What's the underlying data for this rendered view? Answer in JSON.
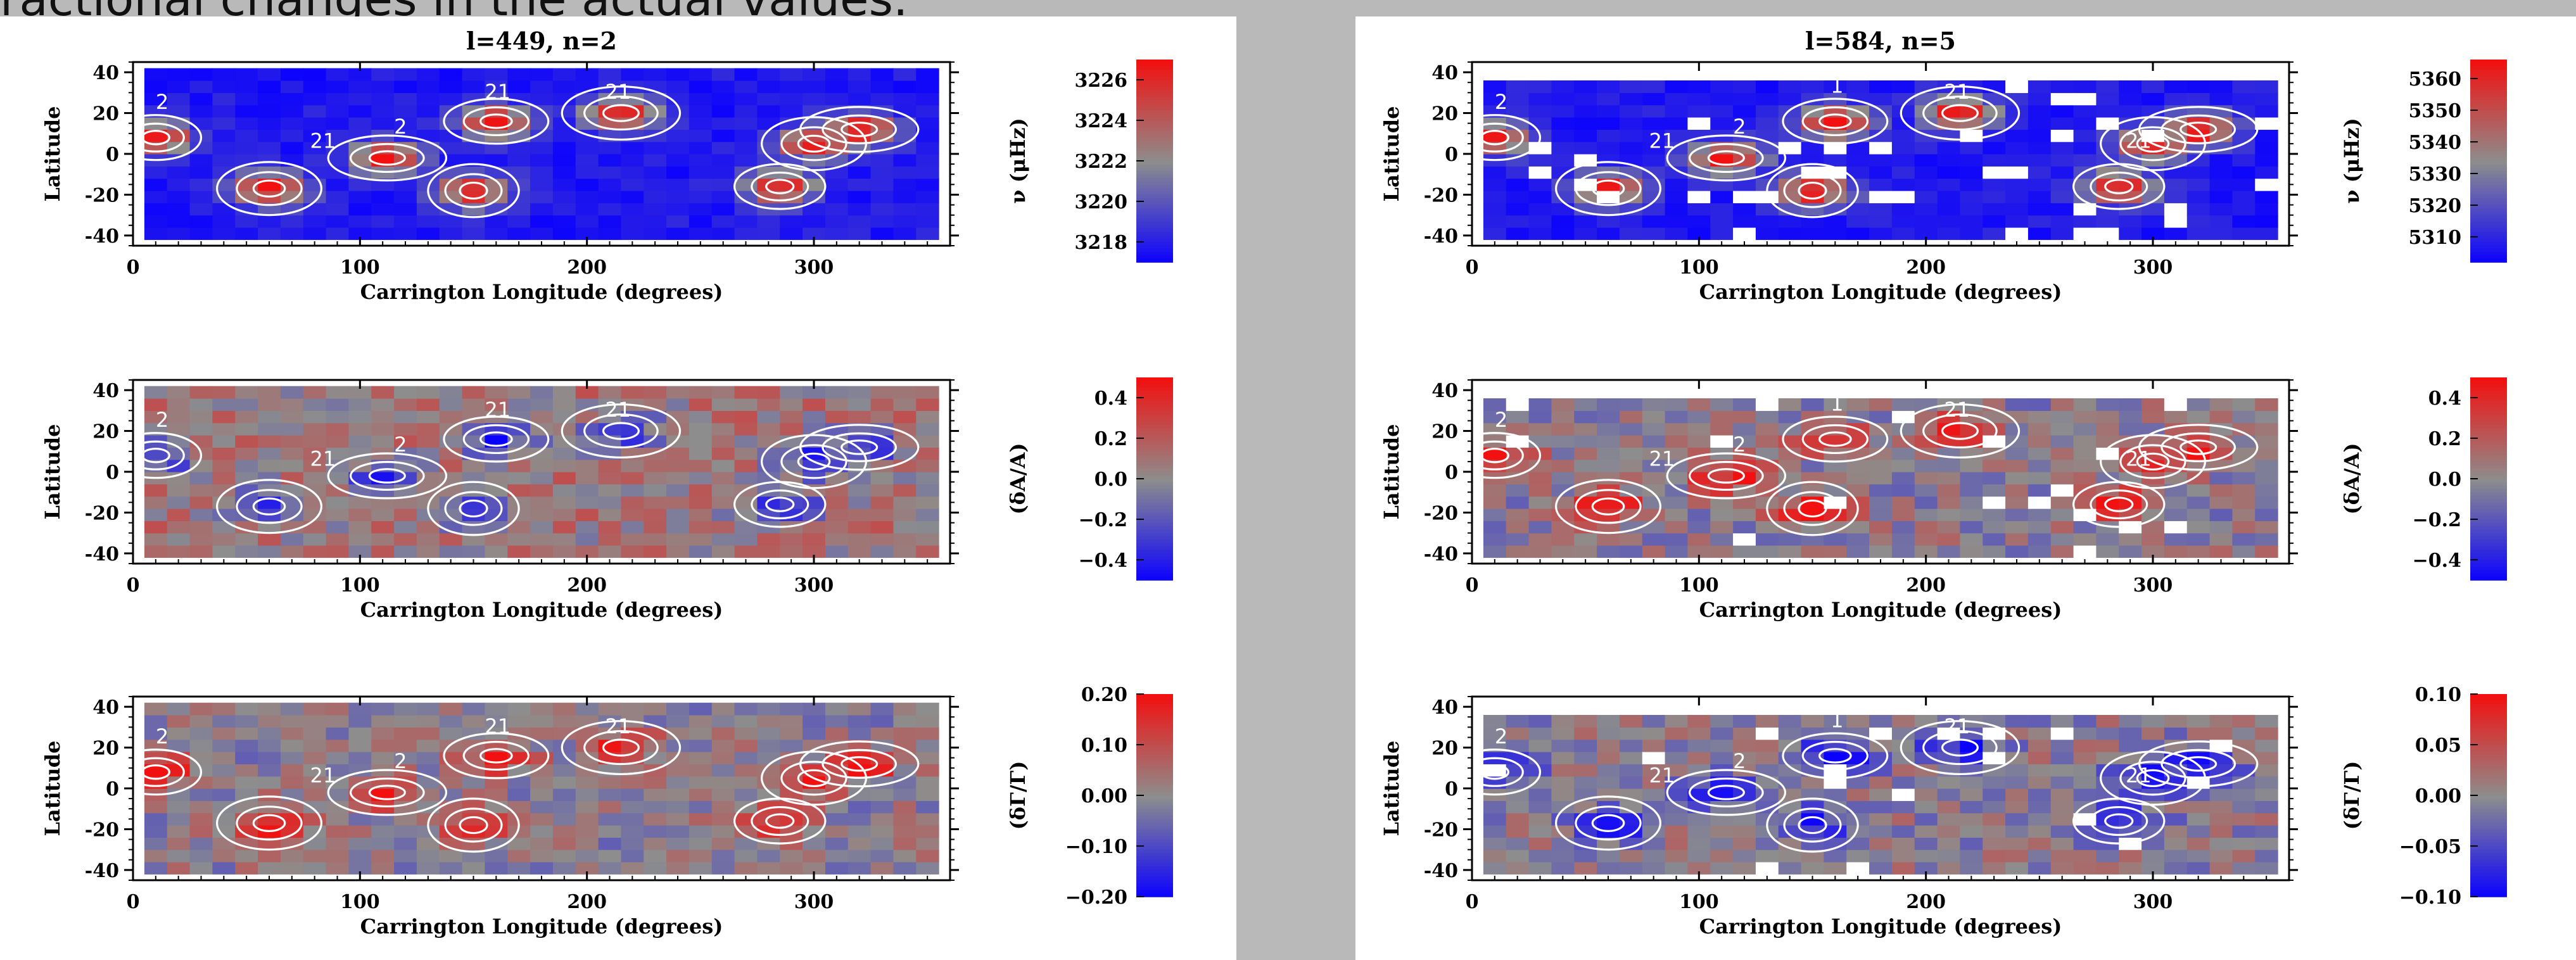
{
  "header_fragment": "ractional changes in the actual values.",
  "colors": {
    "low": "#0a00ff",
    "mid": "#8d8d8d",
    "high": "#f21010",
    "contour": "#ffffff"
  },
  "axis_labels": {
    "x": "Carrington Longitude (degrees)",
    "y": "Latitude"
  },
  "chart_data": [
    {
      "type": "heatmap",
      "column": "left",
      "row": 0,
      "title": "l=449, n=2",
      "title_italic_parts": [
        "l",
        "n"
      ],
      "xlabel": "Carrington Longitude (degrees)",
      "ylabel": "Latitude",
      "xlim": [
        0,
        360
      ],
      "ylim": [
        -45,
        45
      ],
      "xticks": [
        0,
        100,
        200,
        300
      ],
      "yticks": [
        -40,
        -20,
        0,
        20,
        40
      ],
      "colorbar": {
        "label": "ν (μHz)",
        "range": [
          3217,
          3227
        ],
        "ticks": [
          3218,
          3220,
          3222,
          3224,
          3226
        ],
        "tick_labels": [
          "3218",
          "3220",
          "3222",
          "3224",
          "3226"
        ]
      },
      "background_fraction": 0.08,
      "sign": 1,
      "gaps": false,
      "contour_labels": [
        {
          "text": "2",
          "x": 10,
          "y": 22
        },
        {
          "text": "21",
          "x": 78,
          "y": 3
        },
        {
          "text": "2",
          "x": 115,
          "y": 10
        },
        {
          "text": "21",
          "x": 155,
          "y": 27
        },
        {
          "text": "21",
          "x": 208,
          "y": 27
        }
      ]
    },
    {
      "type": "heatmap",
      "column": "left",
      "row": 1,
      "title": "",
      "xlabel": "Carrington Longitude (degrees)",
      "ylabel": "Latitude",
      "xlim": [
        0,
        360
      ],
      "ylim": [
        -45,
        45
      ],
      "xticks": [
        0,
        100,
        200,
        300
      ],
      "yticks": [
        -40,
        -20,
        0,
        20,
        40
      ],
      "colorbar": {
        "label": "(δA/A)",
        "range": [
          -0.5,
          0.5
        ],
        "ticks": [
          -0.4,
          -0.2,
          0.0,
          0.2,
          0.4
        ],
        "tick_labels": [
          "−0.4",
          "−0.2",
          "0.0",
          "0.2",
          "0.4"
        ]
      },
      "background_fraction": 0.58,
      "sign": -1,
      "gaps": false,
      "contour_labels": [
        {
          "text": "2",
          "x": 10,
          "y": 22
        },
        {
          "text": "21",
          "x": 78,
          "y": 3
        },
        {
          "text": "2",
          "x": 115,
          "y": 10
        },
        {
          "text": "21",
          "x": 155,
          "y": 27
        },
        {
          "text": "21",
          "x": 208,
          "y": 27
        }
      ]
    },
    {
      "type": "heatmap",
      "column": "left",
      "row": 2,
      "title": "",
      "xlabel": "Carrington Longitude (degrees)",
      "ylabel": "Latitude",
      "xlim": [
        0,
        360
      ],
      "ylim": [
        -45,
        45
      ],
      "xticks": [
        0,
        100,
        200,
        300
      ],
      "yticks": [
        -40,
        -20,
        0,
        20,
        40
      ],
      "colorbar": {
        "label": "(δΓ/Γ)",
        "range": [
          -0.2,
          0.2
        ],
        "ticks": [
          -0.2,
          -0.1,
          0.0,
          0.1,
          0.2
        ],
        "tick_labels": [
          "−0.20",
          "−0.10",
          "0.00",
          "0.10",
          "0.20"
        ]
      },
      "background_fraction": 0.5,
      "sign": 1,
      "gaps": false,
      "contour_labels": [
        {
          "text": "2",
          "x": 10,
          "y": 22
        },
        {
          "text": "21",
          "x": 78,
          "y": 3
        },
        {
          "text": "2",
          "x": 115,
          "y": 10
        },
        {
          "text": "21",
          "x": 155,
          "y": 27
        },
        {
          "text": "21",
          "x": 208,
          "y": 27
        }
      ]
    },
    {
      "type": "heatmap",
      "column": "right",
      "row": 0,
      "title": "l=584, n=5",
      "title_italic_parts": [
        "l",
        "n"
      ],
      "xlabel": "Carrington Longitude (degrees)",
      "ylabel": "Latitude",
      "xlim": [
        0,
        360
      ],
      "ylim": [
        -45,
        45
      ],
      "xticks": [
        0,
        100,
        200,
        300
      ],
      "yticks": [
        -40,
        -20,
        0,
        20,
        40
      ],
      "colorbar": {
        "label": "ν (μHz)",
        "range": [
          5302,
          5366
        ],
        "ticks": [
          5310,
          5320,
          5330,
          5340,
          5350,
          5360
        ],
        "tick_labels": [
          "5310",
          "5320",
          "5330",
          "5340",
          "5350",
          "5360"
        ]
      },
      "background_fraction": 0.08,
      "sign": 1,
      "gaps": true,
      "contour_labels": [
        {
          "text": "2",
          "x": 10,
          "y": 22
        },
        {
          "text": "21",
          "x": 78,
          "y": 3
        },
        {
          "text": "2",
          "x": 115,
          "y": 10
        },
        {
          "text": "1",
          "x": 158,
          "y": 30
        },
        {
          "text": "21",
          "x": 208,
          "y": 27
        },
        {
          "text": "21",
          "x": 288,
          "y": 3
        }
      ]
    },
    {
      "type": "heatmap",
      "column": "right",
      "row": 1,
      "title": "",
      "xlabel": "Carrington Longitude (degrees)",
      "ylabel": "Latitude",
      "xlim": [
        0,
        360
      ],
      "ylim": [
        -45,
        45
      ],
      "xticks": [
        0,
        100,
        200,
        300
      ],
      "yticks": [
        -40,
        -20,
        0,
        20,
        40
      ],
      "colorbar": {
        "label": "(δA/A)",
        "range": [
          -0.5,
          0.5
        ],
        "ticks": [
          -0.4,
          -0.2,
          0.0,
          0.2,
          0.4
        ],
        "tick_labels": [
          "−0.4",
          "−0.2",
          "0.0",
          "0.2",
          "0.4"
        ]
      },
      "background_fraction": 0.5,
      "sign": 1,
      "gaps": true,
      "contour_labels": [
        {
          "text": "2",
          "x": 10,
          "y": 22
        },
        {
          "text": "21",
          "x": 78,
          "y": 3
        },
        {
          "text": "2",
          "x": 115,
          "y": 10
        },
        {
          "text": "1",
          "x": 158,
          "y": 30
        },
        {
          "text": "21",
          "x": 208,
          "y": 27
        },
        {
          "text": "21",
          "x": 288,
          "y": 3
        }
      ]
    },
    {
      "type": "heatmap",
      "column": "right",
      "row": 2,
      "title": "",
      "xlabel": "Carrington Longitude (degrees)",
      "ylabel": "Latitude",
      "xlim": [
        0,
        360
      ],
      "ylim": [
        -45,
        45
      ],
      "xticks": [
        0,
        100,
        200,
        300
      ],
      "yticks": [
        -40,
        -20,
        0,
        20,
        40
      ],
      "colorbar": {
        "label": "(δΓ/Γ)",
        "range": [
          -0.1,
          0.1
        ],
        "ticks": [
          -0.1,
          -0.05,
          0.0,
          0.05,
          0.1
        ],
        "tick_labels": [
          "−0.10",
          "−0.05",
          "0.00",
          "0.05",
          "0.10"
        ]
      },
      "background_fraction": 0.5,
      "sign": -1,
      "gaps": true,
      "contour_labels": [
        {
          "text": "2",
          "x": 10,
          "y": 22
        },
        {
          "text": "21",
          "x": 78,
          "y": 3
        },
        {
          "text": "2",
          "x": 115,
          "y": 10
        },
        {
          "text": "1",
          "x": 158,
          "y": 30
        },
        {
          "text": "21",
          "x": 208,
          "y": 27
        },
        {
          "text": "21",
          "x": 288,
          "y": 3
        }
      ]
    }
  ],
  "active_regions": [
    {
      "lon": 10,
      "lat": 8
    },
    {
      "lon": 60,
      "lat": -17
    },
    {
      "lon": 112,
      "lat": -2
    },
    {
      "lon": 150,
      "lat": -18
    },
    {
      "lon": 160,
      "lat": 16
    },
    {
      "lon": 215,
      "lat": 20
    },
    {
      "lon": 285,
      "lat": -16
    },
    {
      "lon": 300,
      "lat": 5
    },
    {
      "lon": 320,
      "lat": 12
    }
  ]
}
